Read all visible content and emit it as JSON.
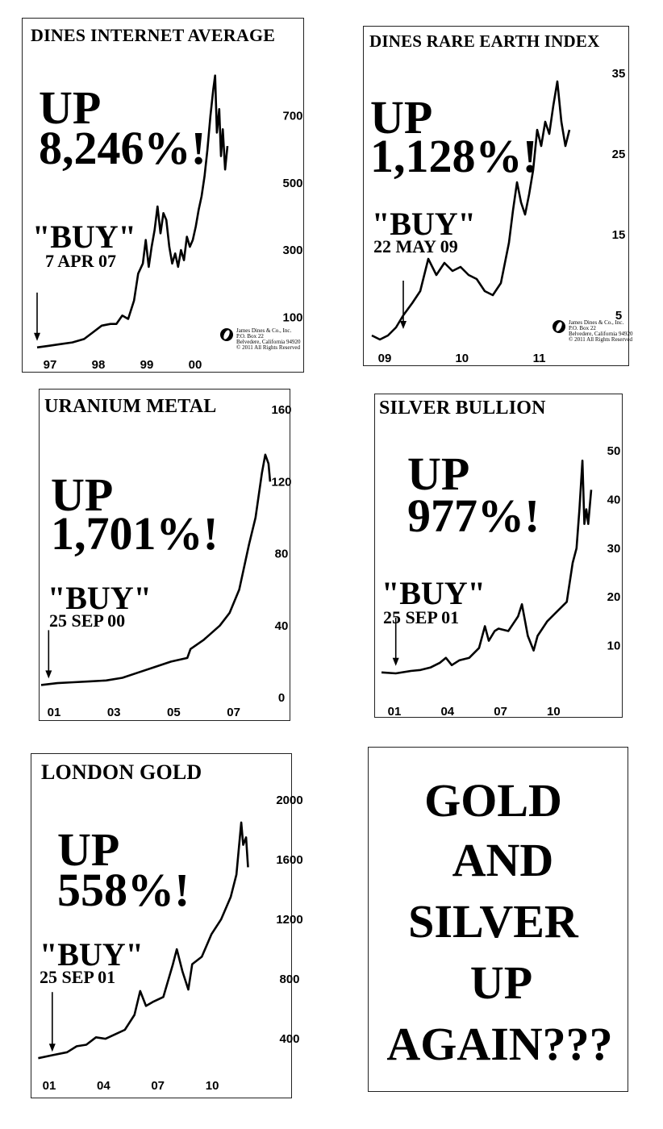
{
  "charts": [
    {
      "id": "internet",
      "title": "DINES INTERNET AVERAGE",
      "change": [
        "UP",
        "8,246%!"
      ],
      "signal": "\"BUY\"",
      "signal_date": "7 APR 07",
      "logo": [
        "James Dines & Co., Inc.",
        "P.O. Box 22",
        "Belvedere, California 94920",
        "© 2011 All Rights Reserved"
      ]
    },
    {
      "id": "rare-earth",
      "title": "DINES RARE EARTH INDEX",
      "change": [
        "UP",
        "1,128%!"
      ],
      "signal": "\"BUY\"",
      "signal_date": "22 MAY 09",
      "logo": [
        "James Dines & Co., Inc.",
        "P.O. Box 22",
        "Belvedere, California 94920",
        "© 2011 All Rights Reserved"
      ]
    },
    {
      "id": "uranium",
      "title": "URANIUM METAL",
      "change": [
        "UP",
        "1,701%!"
      ],
      "signal": "\"BUY\"",
      "signal_date": "25 SEP 00"
    },
    {
      "id": "silver",
      "title": "SILVER BULLION",
      "change": [
        "UP",
        "977%!"
      ],
      "signal": "\"BUY\"",
      "signal_date": "25 SEP 01"
    },
    {
      "id": "gold",
      "title": "LONDON GOLD",
      "change": [
        "UP",
        "558%!"
      ],
      "signal": "\"BUY\"",
      "signal_date": "25 SEP 01"
    }
  ],
  "slogan": [
    "GOLD",
    "AND",
    "SILVER",
    "UP",
    "AGAIN???"
  ],
  "chart_data": [
    {
      "type": "line",
      "title": "DINES INTERNET AVERAGE",
      "x_ticks": [
        "97",
        "98",
        "99",
        "00"
      ],
      "y_ticks": [
        100,
        300,
        500,
        700
      ],
      "ylim": [
        0,
        860
      ],
      "xlim": [
        1997.0,
        2000.35
      ],
      "buy_x": 1997.0,
      "x": [
        1997.0,
        1997.2,
        1997.4,
        1997.6,
        1997.8,
        1997.95,
        1998.1,
        1998.25,
        1998.35,
        1998.45,
        1998.55,
        1998.65,
        1998.72,
        1998.8,
        1998.85,
        1998.9,
        1998.95,
        1999.0,
        1999.05,
        1999.1,
        1999.15,
        1999.2,
        1999.25,
        1999.3,
        1999.35,
        1999.4,
        1999.45,
        1999.5,
        1999.55,
        1999.6,
        1999.65,
        1999.7,
        1999.75,
        1999.8,
        1999.85,
        1999.9,
        1999.95,
        2000.0,
        2000.03,
        2000.06,
        2000.1,
        2000.13,
        2000.16,
        2000.2,
        2000.24
      ],
      "y": [
        10,
        15,
        20,
        25,
        35,
        55,
        75,
        80,
        80,
        105,
        95,
        150,
        230,
        260,
        330,
        250,
        310,
        360,
        430,
        350,
        410,
        390,
        310,
        260,
        290,
        250,
        300,
        270,
        340,
        310,
        330,
        370,
        420,
        460,
        520,
        600,
        700,
        780,
        820,
        650,
        720,
        580,
        660,
        540,
        610
      ]
    },
    {
      "type": "line",
      "title": "DINES RARE EARTH INDEX",
      "x_ticks": [
        "09",
        "10",
        "11"
      ],
      "y_ticks": [
        5,
        15,
        25,
        35
      ],
      "ylim": [
        1,
        37
      ],
      "xlim": [
        2009.0,
        2011.65
      ],
      "buy_x": 2009.39,
      "x": [
        2009.0,
        2009.1,
        2009.2,
        2009.3,
        2009.39,
        2009.5,
        2009.6,
        2009.7,
        2009.8,
        2009.9,
        2010.0,
        2010.1,
        2010.2,
        2010.3,
        2010.4,
        2010.5,
        2010.6,
        2010.7,
        2010.75,
        2010.8,
        2010.85,
        2010.9,
        2010.95,
        2011.0,
        2011.05,
        2011.1,
        2011.15,
        2011.2,
        2011.25,
        2011.3,
        2011.35,
        2011.4,
        2011.45
      ],
      "y": [
        2.5,
        2.0,
        2.5,
        3.5,
        5.0,
        6.5,
        8.0,
        12.0,
        10.0,
        11.5,
        10.5,
        11.0,
        10.0,
        9.5,
        8.0,
        7.5,
        9.0,
        14.0,
        18.0,
        21.5,
        19.0,
        17.5,
        20.0,
        23.0,
        28.0,
        26.0,
        29.0,
        27.5,
        31.0,
        34.0,
        29.0,
        26.0,
        28.0
      ]
    },
    {
      "type": "line",
      "title": "URANIUM METAL",
      "x_ticks": [
        "01",
        "03",
        "05",
        "07"
      ],
      "y_ticks": [
        0,
        40,
        80,
        120,
        160
      ],
      "ylim": [
        0,
        160
      ],
      "xlim": [
        2000.5,
        2007.9
      ],
      "buy_x": 2000.73,
      "x": [
        2000.5,
        2001.0,
        2001.5,
        2002.0,
        2002.5,
        2003.0,
        2003.5,
        2004.0,
        2004.5,
        2005.0,
        2005.1,
        2005.5,
        2006.0,
        2006.3,
        2006.6,
        2006.9,
        2007.1,
        2007.3,
        2007.4,
        2007.5,
        2007.55
      ],
      "y": [
        7,
        8,
        8.5,
        9,
        9.5,
        11,
        14,
        17,
        20,
        22,
        27,
        32,
        40,
        47,
        60,
        85,
        100,
        125,
        135,
        130,
        120
      ]
    },
    {
      "type": "line",
      "title": "SILVER BULLION",
      "x_ticks": [
        "01",
        "04",
        "07",
        "10"
      ],
      "y_ticks": [
        10,
        20,
        30,
        40,
        50
      ],
      "ylim": [
        0,
        52
      ],
      "xlim": [
        2001.0,
        2012.0
      ],
      "buy_x": 2001.73,
      "x": [
        2001.0,
        2001.73,
        2002.5,
        2003.0,
        2003.5,
        2004.0,
        2004.3,
        2004.6,
        2005.0,
        2005.5,
        2006.0,
        2006.3,
        2006.5,
        2006.8,
        2007.0,
        2007.5,
        2008.0,
        2008.2,
        2008.5,
        2008.8,
        2009.0,
        2009.5,
        2010.0,
        2010.5,
        2010.8,
        2011.0,
        2011.15,
        2011.3,
        2011.4,
        2011.5,
        2011.6,
        2011.75
      ],
      "y": [
        4.5,
        4.3,
        4.8,
        5.0,
        5.5,
        6.5,
        7.5,
        6.0,
        7.0,
        7.5,
        9.5,
        14.0,
        11.0,
        13.0,
        13.5,
        13.0,
        16.0,
        18.5,
        12.0,
        9.0,
        12.0,
        15.0,
        17.0,
        19.0,
        27.0,
        30.0,
        38.0,
        48.0,
        35.0,
        38.0,
        35.0,
        42.0
      ]
    },
    {
      "type": "line",
      "title": "LONDON GOLD",
      "x_ticks": [
        "01",
        "04",
        "07",
        "10"
      ],
      "y_ticks": [
        400,
        800,
        1200,
        1600,
        2000
      ],
      "ylim": [
        190,
        2060
      ],
      "xlim": [
        2000.9,
        2012.3
      ],
      "buy_x": 2001.73,
      "x": [
        2001.0,
        2001.73,
        2002.5,
        2003.0,
        2003.5,
        2004.0,
        2004.5,
        2005.0,
        2005.5,
        2006.0,
        2006.3,
        2006.6,
        2007.0,
        2007.5,
        2008.0,
        2008.2,
        2008.5,
        2008.8,
        2009.0,
        2009.5,
        2010.0,
        2010.5,
        2011.0,
        2011.3,
        2011.55,
        2011.65,
        2011.8,
        2011.9
      ],
      "y": [
        270,
        290,
        310,
        350,
        360,
        410,
        400,
        430,
        460,
        560,
        720,
        620,
        650,
        680,
        900,
        1000,
        850,
        730,
        900,
        950,
        1100,
        1200,
        1350,
        1500,
        1850,
        1700,
        1750,
        1550
      ]
    }
  ]
}
